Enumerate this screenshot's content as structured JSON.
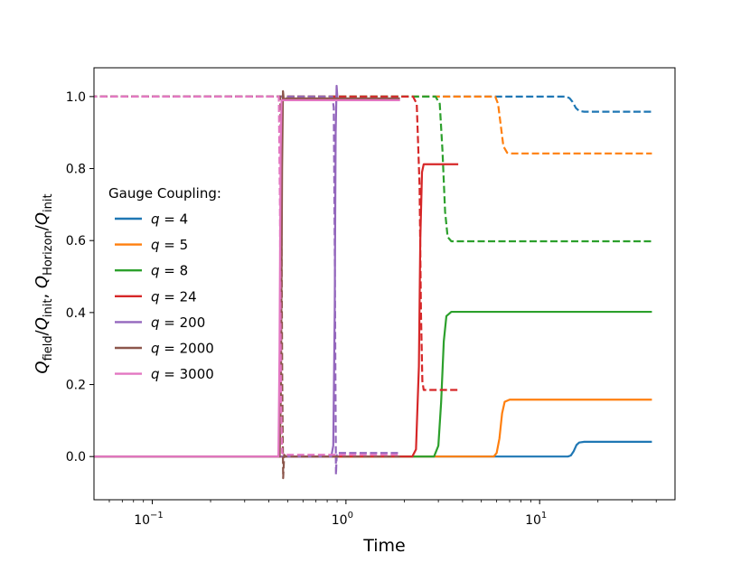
{
  "chart_data": {
    "type": "line",
    "xscale": "log",
    "xlim": [
      0.05,
      50
    ],
    "ylim": [
      -0.12,
      1.08
    ],
    "xlabel": "Time",
    "ylabel": "Q_field/Q_init, Q_Horizon/Q_init",
    "ylabel_parts": [
      "Q",
      "field",
      "/Q",
      "init",
      ", Q",
      "Horizon",
      "/Q",
      "init"
    ],
    "xticks": [
      {
        "value": 0.1,
        "base": "10",
        "exp": "−1"
      },
      {
        "value": 1,
        "base": "10",
        "exp": "0"
      },
      {
        "value": 10,
        "base": "10",
        "exp": "1"
      }
    ],
    "yticks": [
      {
        "value": 0.0,
        "label": "0.0"
      },
      {
        "value": 0.2,
        "label": "0.2"
      },
      {
        "value": 0.4,
        "label": "0.4"
      },
      {
        "value": 0.6,
        "label": "0.6"
      },
      {
        "value": 0.8,
        "label": "0.8"
      },
      {
        "value": 1.0,
        "label": "1.0"
      }
    ],
    "legend": {
      "title": "Gauge Coupling:",
      "placement": "center-left",
      "entries": [
        "q = 4",
        "q = 5",
        "q = 8",
        "q = 24",
        "q = 200",
        "q = 2000",
        "q = 3000"
      ]
    },
    "series": [
      {
        "name": "q = 4",
        "color": "#1f77b4",
        "solid": [
          [
            0.02,
            0
          ],
          [
            14.0,
            0
          ],
          [
            14.5,
            0.003
          ],
          [
            15.0,
            0.015
          ],
          [
            15.5,
            0.032
          ],
          [
            16.0,
            0.039
          ],
          [
            17.0,
            0.041
          ],
          [
            38,
            0.041
          ]
        ],
        "dashed": [
          [
            0.02,
            1.0
          ],
          [
            13.8,
            1.0
          ],
          [
            14.3,
            0.995
          ],
          [
            14.8,
            0.985
          ],
          [
            15.4,
            0.968
          ],
          [
            16.0,
            0.96
          ],
          [
            17,
            0.958
          ],
          [
            38,
            0.958
          ]
        ]
      },
      {
        "name": "q = 5",
        "color": "#ff7f0e",
        "solid": [
          [
            0.02,
            0
          ],
          [
            5.8,
            0
          ],
          [
            6.0,
            0.01
          ],
          [
            6.2,
            0.05
          ],
          [
            6.4,
            0.12
          ],
          [
            6.6,
            0.152
          ],
          [
            7.0,
            0.158
          ],
          [
            38,
            0.158
          ]
        ],
        "dashed": [
          [
            0.02,
            1.0
          ],
          [
            5.9,
            1.0
          ],
          [
            6.1,
            0.98
          ],
          [
            6.3,
            0.92
          ],
          [
            6.5,
            0.862
          ],
          [
            6.8,
            0.844
          ],
          [
            7.2,
            0.842
          ],
          [
            38,
            0.842
          ]
        ]
      },
      {
        "name": "q = 8",
        "color": "#2ca02c",
        "solid": [
          [
            0.02,
            0
          ],
          [
            2.85,
            0
          ],
          [
            3.0,
            0.03
          ],
          [
            3.1,
            0.15
          ],
          [
            3.2,
            0.32
          ],
          [
            3.3,
            0.39
          ],
          [
            3.5,
            0.402
          ],
          [
            38,
            0.402
          ]
        ],
        "dashed": [
          [
            0.02,
            1.0
          ],
          [
            2.9,
            1.0
          ],
          [
            3.05,
            0.98
          ],
          [
            3.15,
            0.85
          ],
          [
            3.25,
            0.68
          ],
          [
            3.35,
            0.61
          ],
          [
            3.5,
            0.598
          ],
          [
            38,
            0.598
          ]
        ]
      },
      {
        "name": "q = 24",
        "color": "#d62728",
        "solid": [
          [
            0.02,
            0
          ],
          [
            2.2,
            0
          ],
          [
            2.3,
            0.02
          ],
          [
            2.38,
            0.25
          ],
          [
            2.42,
            0.6
          ],
          [
            2.47,
            0.79
          ],
          [
            2.52,
            0.812
          ],
          [
            3.8,
            0.812
          ]
        ],
        "dashed": [
          [
            0.02,
            1.0
          ],
          [
            2.22,
            1.0
          ],
          [
            2.32,
            0.98
          ],
          [
            2.4,
            0.75
          ],
          [
            2.44,
            0.4
          ],
          [
            2.48,
            0.21
          ],
          [
            2.52,
            0.185
          ],
          [
            3.8,
            0.185
          ]
        ]
      },
      {
        "name": "q = 200",
        "color": "#9467bd",
        "solid": [
          [
            0.02,
            0
          ],
          [
            0.84,
            0
          ],
          [
            0.86,
            0.03
          ],
          [
            0.875,
            0.4
          ],
          [
            0.885,
            0.9
          ],
          [
            0.895,
            1.03
          ],
          [
            0.905,
            0.99
          ],
          [
            1.9,
            0.99
          ]
        ],
        "dashed": [
          [
            0.02,
            1.0
          ],
          [
            0.85,
            1.0
          ],
          [
            0.865,
            0.97
          ],
          [
            0.877,
            0.5
          ],
          [
            0.888,
            -0.05
          ],
          [
            0.897,
            0.01
          ],
          [
            0.91,
            0.01
          ],
          [
            1.9,
            0.01
          ]
        ]
      },
      {
        "name": "q = 2000",
        "color": "#8c564b",
        "solid": [
          [
            0.02,
            0
          ],
          [
            0.455,
            0
          ],
          [
            0.462,
            0.2
          ],
          [
            0.468,
            0.8
          ],
          [
            0.473,
            1.015
          ],
          [
            0.478,
            0.99
          ],
          [
            0.49,
            0.995
          ],
          [
            1.9,
            0.995
          ]
        ],
        "dashed": [
          [
            0.02,
            1.0
          ],
          [
            0.458,
            1.0
          ],
          [
            0.463,
            0.8
          ],
          [
            0.469,
            0.2
          ],
          [
            0.474,
            -0.06
          ],
          [
            0.48,
            0.005
          ],
          [
            0.49,
            0.0
          ],
          [
            1.9,
            0.0
          ]
        ]
      },
      {
        "name": "q = 3000",
        "color": "#e377c2",
        "solid": [
          [
            0.02,
            0
          ],
          [
            0.448,
            0
          ],
          [
            0.454,
            0.3
          ],
          [
            0.46,
            0.85
          ],
          [
            0.465,
            0.99
          ],
          [
            0.475,
            0.99
          ],
          [
            1.9,
            0.99
          ]
        ],
        "dashed": [
          [
            0.02,
            1.0
          ],
          [
            0.45,
            1.0
          ],
          [
            0.456,
            0.7
          ],
          [
            0.462,
            0.15
          ],
          [
            0.468,
            0.01
          ],
          [
            0.48,
            0.005
          ],
          [
            1.9,
            0.005
          ]
        ]
      }
    ]
  }
}
